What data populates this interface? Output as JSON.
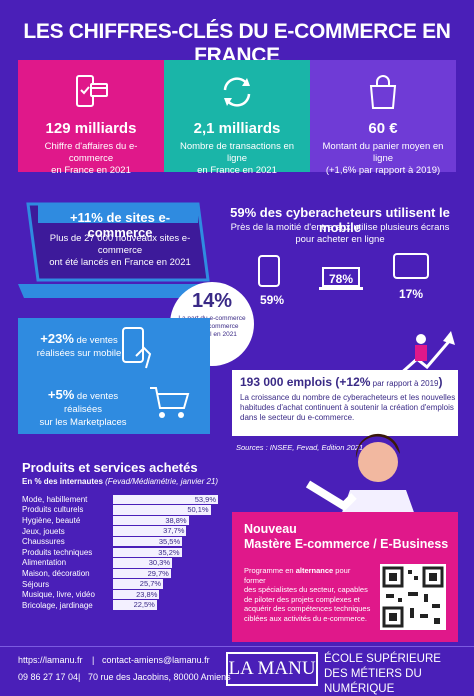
{
  "title": "LES CHIFFRES-CLÉS DU E-COMMERCE EN FRANCE",
  "stats": [
    {
      "big": "129 milliards",
      "line1": "Chiffre d'affaires du e-commerce",
      "line2": "en France en 2021",
      "icon": "phone-card-icon"
    },
    {
      "big": "2,1 milliards",
      "line1": "Nombre de transactions en ligne",
      "line2": "en France en 2021",
      "icon": "refresh-icon"
    },
    {
      "big": "60 €",
      "line1": "Montant du panier moyen en ligne",
      "line2": "(+1,6% par rapport à 2019)",
      "icon": "shopping-bag-icon"
    }
  ],
  "sites": {
    "title": "+11% de sites e-commerce",
    "line1": "Plus de 27 000 nouveaux sites e-commerce",
    "line2": "ont été lancés en France en 2021"
  },
  "cyber": {
    "title": "59% des cyberacheteurs utilisent le mobile",
    "line1": "Près de la moitié d'entre eux utilise plusieurs écrans",
    "line2": "pour acheter en ligne",
    "devices": [
      {
        "pct": "59%",
        "icon": "smartphone-icon"
      },
      {
        "pct": "78%",
        "icon": "laptop-icon"
      },
      {
        "pct": "17%",
        "icon": "tablet-icon"
      }
    ]
  },
  "share": {
    "big": "14%",
    "line1": "La part du e-commerce",
    "line2": "dans le commerce",
    "line3": "de détail en 2021"
  },
  "mobile": {
    "pct": "+23%",
    "rest": " de ventes",
    "line2": "réalisées sur mobile"
  },
  "market": {
    "pct": "+5%",
    "rest": " de ventes réalisées",
    "line2": "sur les Marketplaces"
  },
  "jobs": {
    "big": "193 000 emplois (+12%",
    "small": " par rapport à 2019",
    "close": ")",
    "line1": "La croissance du nombre de cyberacheteurs et les nouvelles",
    "line2": "habitudes d'achat continuent à soutenir la création d'emplois",
    "line3": "dans le secteur du e-commerce."
  },
  "sources": "Sources : INSEE, Fevad, Edition 2021",
  "products": {
    "title": "Produits et services achetés",
    "sub1": "En % des internautes",
    "sub2": " (Fevad/Médiamétrie, janvier 21)"
  },
  "chart_data": {
    "type": "bar",
    "title": "Produits et services achetés",
    "categories": [
      "Mode, habillement",
      "Produits culturels",
      "Hygiène, beauté",
      "Jeux, jouets",
      "Chaussures",
      "Produits techniques",
      "Alimentation",
      "Maison, décoration",
      "Séjours",
      "Musique, livre, vidéo",
      "Bricolage, jardinage"
    ],
    "values": [
      53.9,
      50.1,
      38.8,
      37.7,
      35.5,
      35.2,
      30.3,
      29.7,
      25.7,
      23.8,
      22.5
    ],
    "labels": [
      "53,9%",
      "50,1%",
      "38,8%",
      "37,7%",
      "35,5%",
      "35,2%",
      "30,3%",
      "29,7%",
      "25,7%",
      "23,8%",
      "22,5%"
    ],
    "xlim": [
      0,
      53.9
    ]
  },
  "promo": {
    "l1": "Nouveau",
    "l2": "Mastère E-commerce / E-Business",
    "t1": "Programme en ",
    "t1b": "alternance",
    "t1c": " pour former",
    "t2": "des spécialistes du secteur, capables",
    "t3": "de piloter des projets complexes et",
    "t4": "acquérir des compétences techniques",
    "t5": "ciblées aux activités du e-commerce."
  },
  "footer": {
    "site": "https://lamanu.fr",
    "email": "contact-amiens@lamanu.fr",
    "phone": "09 86 27 17 04",
    "address": "70 rue des Jacobins, 80000 Amiens",
    "brand": "LA MANU",
    "school1": "ÉCOLE SUPÉRIEURE",
    "school2": "DES MÉTIERS DU NUMÉRIQUE"
  },
  "colors": {
    "background": "#4a1fb8",
    "pink": "#e0188a",
    "teal": "#1ab5a8",
    "purple": "#6f3bd6",
    "blue": "#2f8be0"
  }
}
